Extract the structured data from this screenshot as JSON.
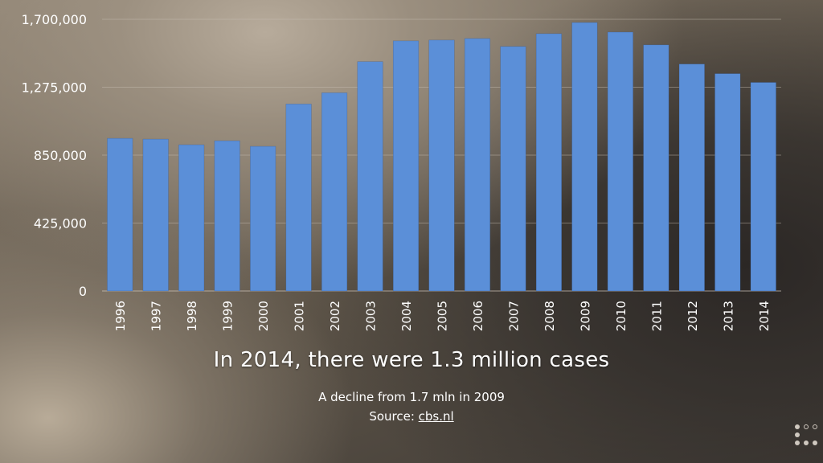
{
  "chart_data": {
    "type": "bar",
    "categories": [
      "1996",
      "1997",
      "1998",
      "1999",
      "2000",
      "2001",
      "2002",
      "2003",
      "2004",
      "2005",
      "2006",
      "2007",
      "2008",
      "2009",
      "2010",
      "2011",
      "2012",
      "2013",
      "2014"
    ],
    "values": [
      955000,
      950000,
      915000,
      940000,
      905000,
      1170000,
      1240000,
      1435000,
      1565000,
      1570000,
      1580000,
      1530000,
      1610000,
      1680000,
      1620000,
      1540000,
      1420000,
      1360000,
      1305000
    ],
    "ylim": [
      0,
      1700000
    ],
    "yticks": [
      0,
      425000,
      850000,
      1275000,
      1700000
    ],
    "ytick_labels": [
      "0",
      "425,000",
      "850,000",
      "1,275,000",
      "1,700,000"
    ],
    "bar_color": "#5b8fd8",
    "grid": true,
    "title": "In 2014, there were 1.3 million cases",
    "xlabel": "",
    "ylabel": ""
  },
  "subtitle": "A decline from 1.7 mln in 2009",
  "source": {
    "prefix": "Source: ",
    "link": "cbs.nl"
  },
  "nav_icon": "slide-navigator-dots-icon"
}
